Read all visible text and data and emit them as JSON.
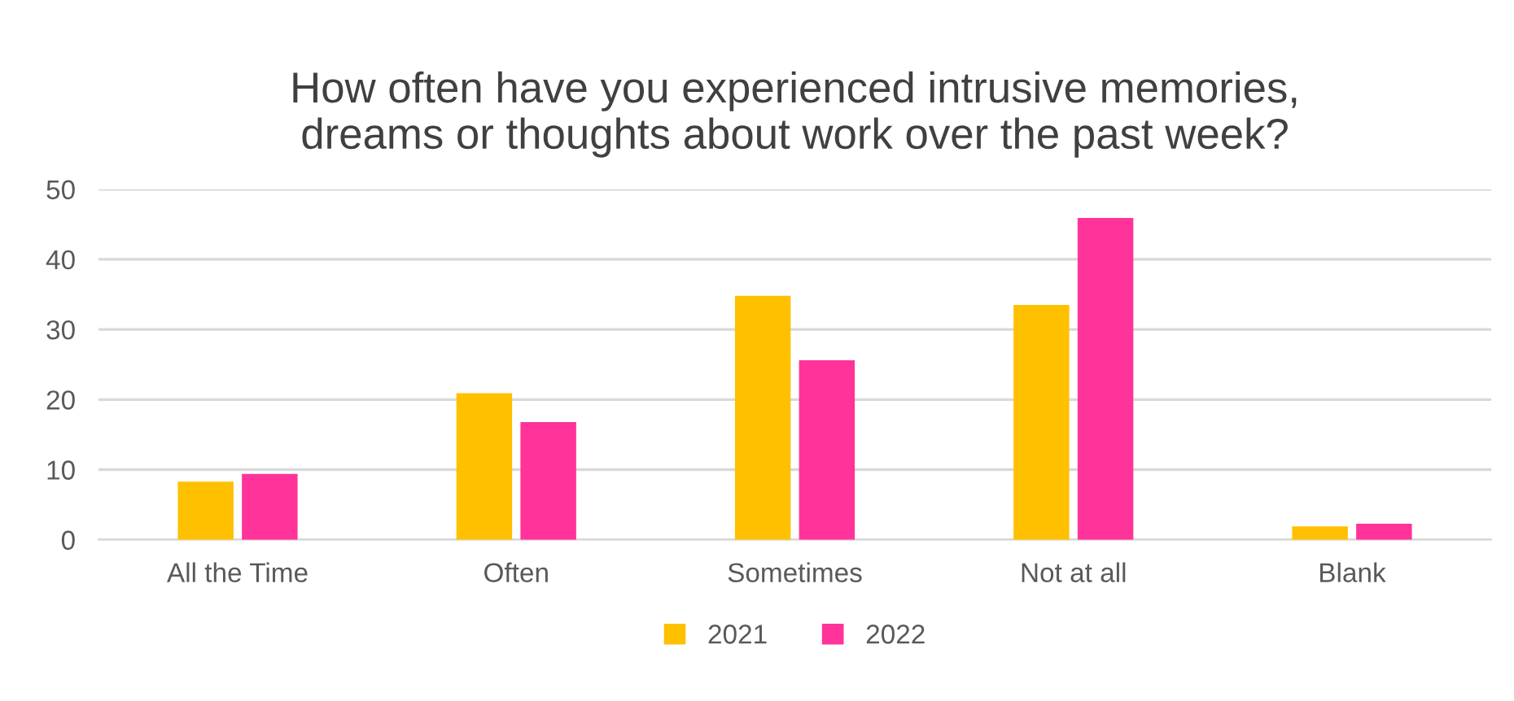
{
  "chart_data": {
    "type": "bar",
    "title": "How often have you experienced intrusive memories,\ndreams or thoughts about work over the past week?",
    "categories": [
      "All the Time",
      "Often",
      "Sometimes",
      "Not at all",
      "Blank"
    ],
    "series": [
      {
        "name": "2021",
        "color": "#ffc000",
        "values": [
          8.3,
          20.9,
          34.8,
          33.5,
          1.9
        ]
      },
      {
        "name": "2022",
        "color": "#ff3399",
        "values": [
          9.4,
          16.8,
          25.6,
          45.9,
          2.3
        ]
      }
    ],
    "ylim": [
      0,
      50
    ],
    "yticks": [
      0,
      10,
      20,
      30,
      40,
      50
    ],
    "grid": "y",
    "legend": "bottom"
  }
}
